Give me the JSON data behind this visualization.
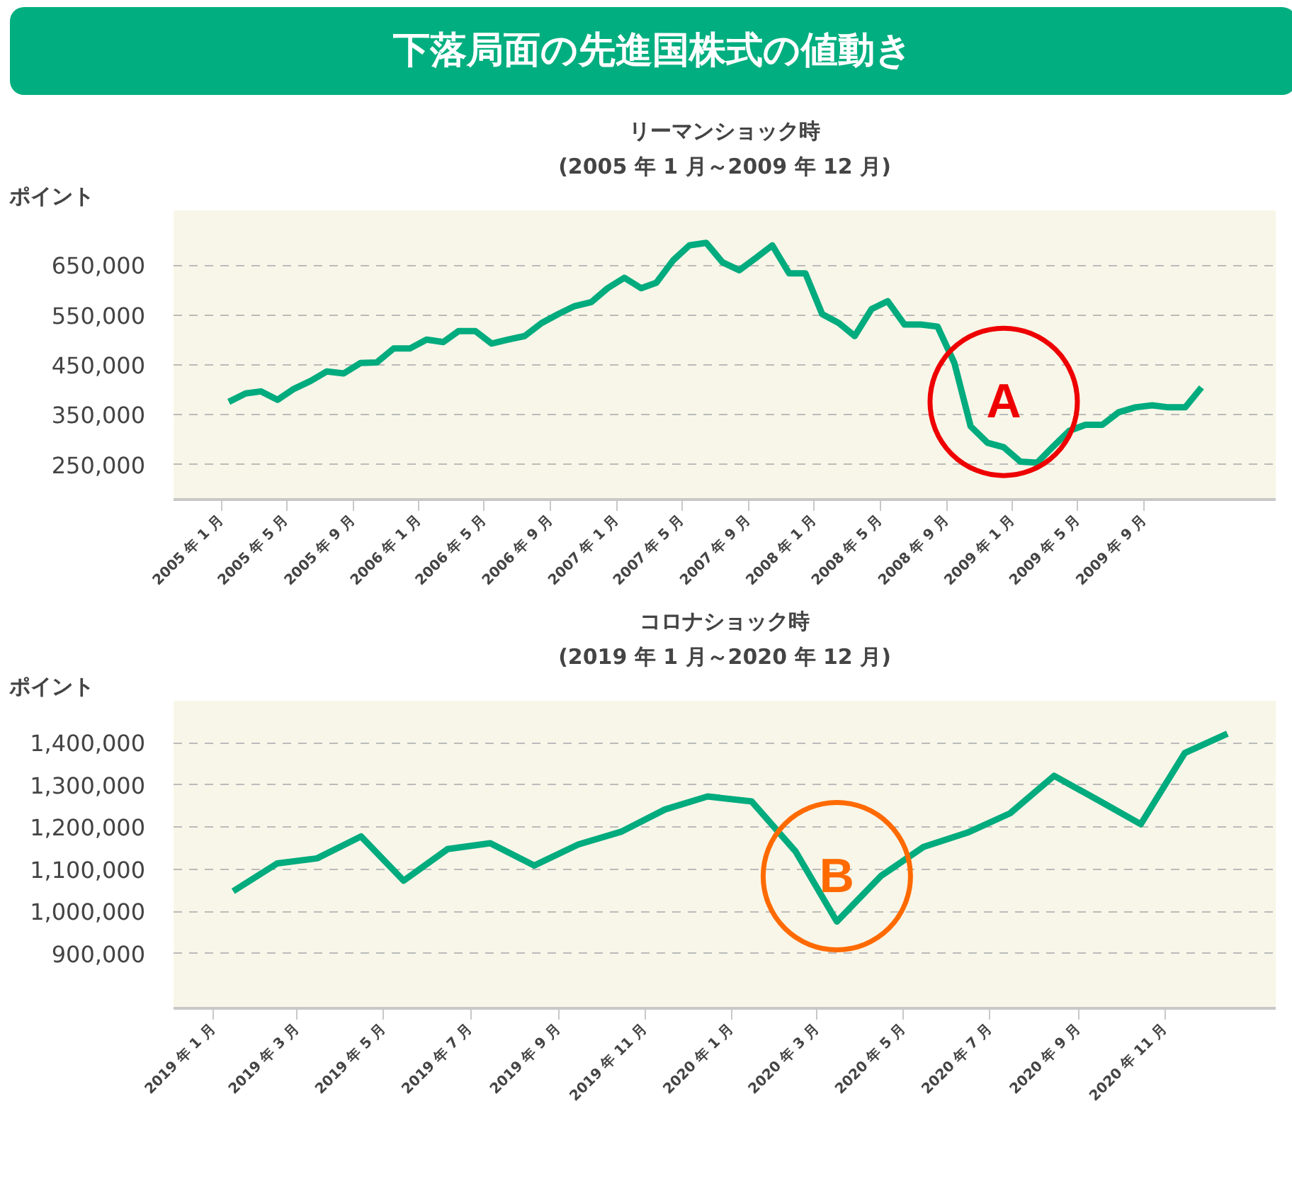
{
  "chart_data": [
    {
      "type": "line",
      "title": "リーマンショック時",
      "subtitle": "(2005 年 1 月～2009 年 12 月)",
      "ylabel": "ポイント",
      "annotations": [
        "下落局面の先進国株式の値動き",
        {
          "text": "A",
          "x": "2008-12-15",
          "y": 285000
        }
      ],
      "x": [
        "2005-01-15",
        "2005-02-15",
        "2005-03-15",
        "2005-04-15",
        "2005-05-15",
        "2005-06-15",
        "2005-07-15",
        "2005-08-15",
        "2005-09-15",
        "2005-10-15",
        "2005-11-15",
        "2005-12-15",
        "2006-01-15",
        "2006-02-15",
        "2006-03-15",
        "2006-04-15",
        "2006-05-15",
        "2006-06-15",
        "2006-07-15",
        "2006-08-15",
        "2006-09-15",
        "2006-10-15",
        "2006-11-15",
        "2006-12-15",
        "2007-01-15",
        "2007-02-15",
        "2007-03-15",
        "2007-04-15",
        "2007-05-15",
        "2007-06-15",
        "2007-07-15",
        "2007-08-15",
        "2007-09-15",
        "2007-10-15",
        "2007-11-15",
        "2007-12-15",
        "2008-01-15",
        "2008-02-15",
        "2008-03-15",
        "2008-04-15",
        "2008-05-15",
        "2008-06-15",
        "2008-07-15",
        "2008-08-15",
        "2008-09-15",
        "2008-10-15",
        "2008-11-15",
        "2008-12-15",
        "2009-01-15",
        "2009-02-15",
        "2009-03-15",
        "2009-04-15",
        "2009-05-15",
        "2009-06-15",
        "2009-07-15",
        "2009-08-15",
        "2009-09-15",
        "2009-10-15",
        "2009-11-15",
        "2009-12-15"
      ],
      "series": [
        {
          "color": "#00ab7e",
          "values": [
            376000,
            393000,
            397000,
            380000,
            402000,
            418000,
            437000,
            433000,
            454000,
            455000,
            483000,
            483000,
            501000,
            496000,
            518000,
            518000,
            493000,
            501000,
            508000,
            534000,
            552000,
            568000,
            576000,
            604000,
            625000,
            604000,
            615000,
            660000,
            690000,
            695000,
            656000,
            640000,
            665000,
            690000,
            634000,
            634000,
            552000,
            534000,
            508000,
            562000,
            578000,
            531000,
            531000,
            527000,
            454000,
            327000,
            294000,
            285000,
            256000,
            254000,
            285000,
            318000,
            330000,
            330000,
            355000,
            365000,
            369000,
            365000,
            365000,
            405000
          ]
        }
      ],
      "xlim": [
        "2004-10-05",
        "2010-05-01"
      ],
      "xticks": [
        {
          "value": "2005-01",
          "label": "2005 年 1 月"
        },
        {
          "value": "2005-05",
          "label": "2005 年 5 月"
        },
        {
          "value": "2005-09",
          "label": "2005 年 9 月"
        },
        {
          "value": "2006-01",
          "label": "2006 年 1 月"
        },
        {
          "value": "2006-05",
          "label": "2006 年 5 月"
        },
        {
          "value": "2006-09",
          "label": "2006 年 9 月"
        },
        {
          "value": "2007-01",
          "label": "2007 年 1 月"
        },
        {
          "value": "2007-05",
          "label": "2007 年 5 月"
        },
        {
          "value": "2007-09",
          "label": "2007 年 9 月"
        },
        {
          "value": "2008-01",
          "label": "2008 年 1 月"
        },
        {
          "value": "2008-05",
          "label": "2008 年 5 月"
        },
        {
          "value": "2008-09",
          "label": "2008 年 9 月"
        },
        {
          "value": "2009-01",
          "label": "2009 年 1 月"
        },
        {
          "value": "2009-05",
          "label": "2009 年 5 月"
        },
        {
          "value": "2009-09",
          "label": "2009 年 9 月"
        }
      ],
      "ylim": [
        180000,
        760000
      ],
      "yticks": [
        {
          "value": 250000,
          "label": "250,000"
        },
        {
          "value": 350000,
          "label": "350,000"
        },
        {
          "value": 450000,
          "label": "450,000"
        },
        {
          "value": 550000,
          "label": "550,000"
        },
        {
          "value": 650000,
          "label": "650,000"
        }
      ],
      "grid": "y",
      "marker": "none",
      "line_style": "solid"
    },
    {
      "type": "line",
      "title": "コロナショック時",
      "subtitle": "(2019 年 1 月～2020 年 12 月)",
      "ylabel": "ポイント",
      "annotations": [
        {
          "text": "B",
          "x": "2020-03-15",
          "y": 976000
        }
      ],
      "x": [
        "2019-01-15",
        "2019-02-15",
        "2019-03-15",
        "2019-04-15",
        "2019-05-15",
        "2019-06-15",
        "2019-07-15",
        "2019-08-15",
        "2019-09-15",
        "2019-10-15",
        "2019-11-15",
        "2019-12-15",
        "2020-01-15",
        "2020-02-15",
        "2020-03-15",
        "2020-04-15",
        "2020-05-15",
        "2020-06-15",
        "2020-07-15",
        "2020-08-15",
        "2020-09-15",
        "2020-10-15",
        "2020-11-15",
        "2020-12-15"
      ],
      "series": [
        {
          "color": "#00ab7e",
          "values": [
            1048000,
            1114000,
            1126000,
            1178000,
            1073000,
            1148000,
            1162000,
            1109000,
            1159000,
            1189000,
            1242000,
            1273000,
            1261000,
            1142000,
            976000,
            1084000,
            1153000,
            1187000,
            1233000,
            1322000,
            1264000,
            1207000,
            1376000,
            1422000
          ]
        }
      ],
      "xlim": [
        "2018-12-04",
        "2021-01-18"
      ],
      "xticks": [
        {
          "value": "2019-01",
          "label": "2019 年 1 月"
        },
        {
          "value": "2019-03",
          "label": "2019 年 3 月"
        },
        {
          "value": "2019-05",
          "label": "2019 年 5 月"
        },
        {
          "value": "2019-07",
          "label": "2019 年 7 月"
        },
        {
          "value": "2019-09",
          "label": "2019 年 9 月"
        },
        {
          "value": "2019-11",
          "label": "2019 年 11 月"
        },
        {
          "value": "2020-01",
          "label": "2020 年 1 月"
        },
        {
          "value": "2020-03",
          "label": "2020 年 3 月"
        },
        {
          "value": "2020-05",
          "label": "2020 年 5 月"
        },
        {
          "value": "2020-07",
          "label": "2020 年 7 月"
        },
        {
          "value": "2020-09",
          "label": "2020 年 9 月"
        },
        {
          "value": "2020-11",
          "label": "2020 年 11 月"
        }
      ],
      "ylim": [
        770000,
        1500000
      ],
      "yticks": [
        {
          "value": 900000,
          "label": "900,000"
        },
        {
          "value": 1000000,
          "label": "1,000,000"
        },
        {
          "value": 1100000,
          "label": "1,100,000"
        },
        {
          "value": 1200000,
          "label": "1,200,000"
        },
        {
          "value": 1300000,
          "label": "1,300,000"
        },
        {
          "value": 1400000,
          "label": "1,400,000"
        }
      ],
      "grid": "y",
      "marker": "none",
      "line_style": "solid"
    }
  ]
}
